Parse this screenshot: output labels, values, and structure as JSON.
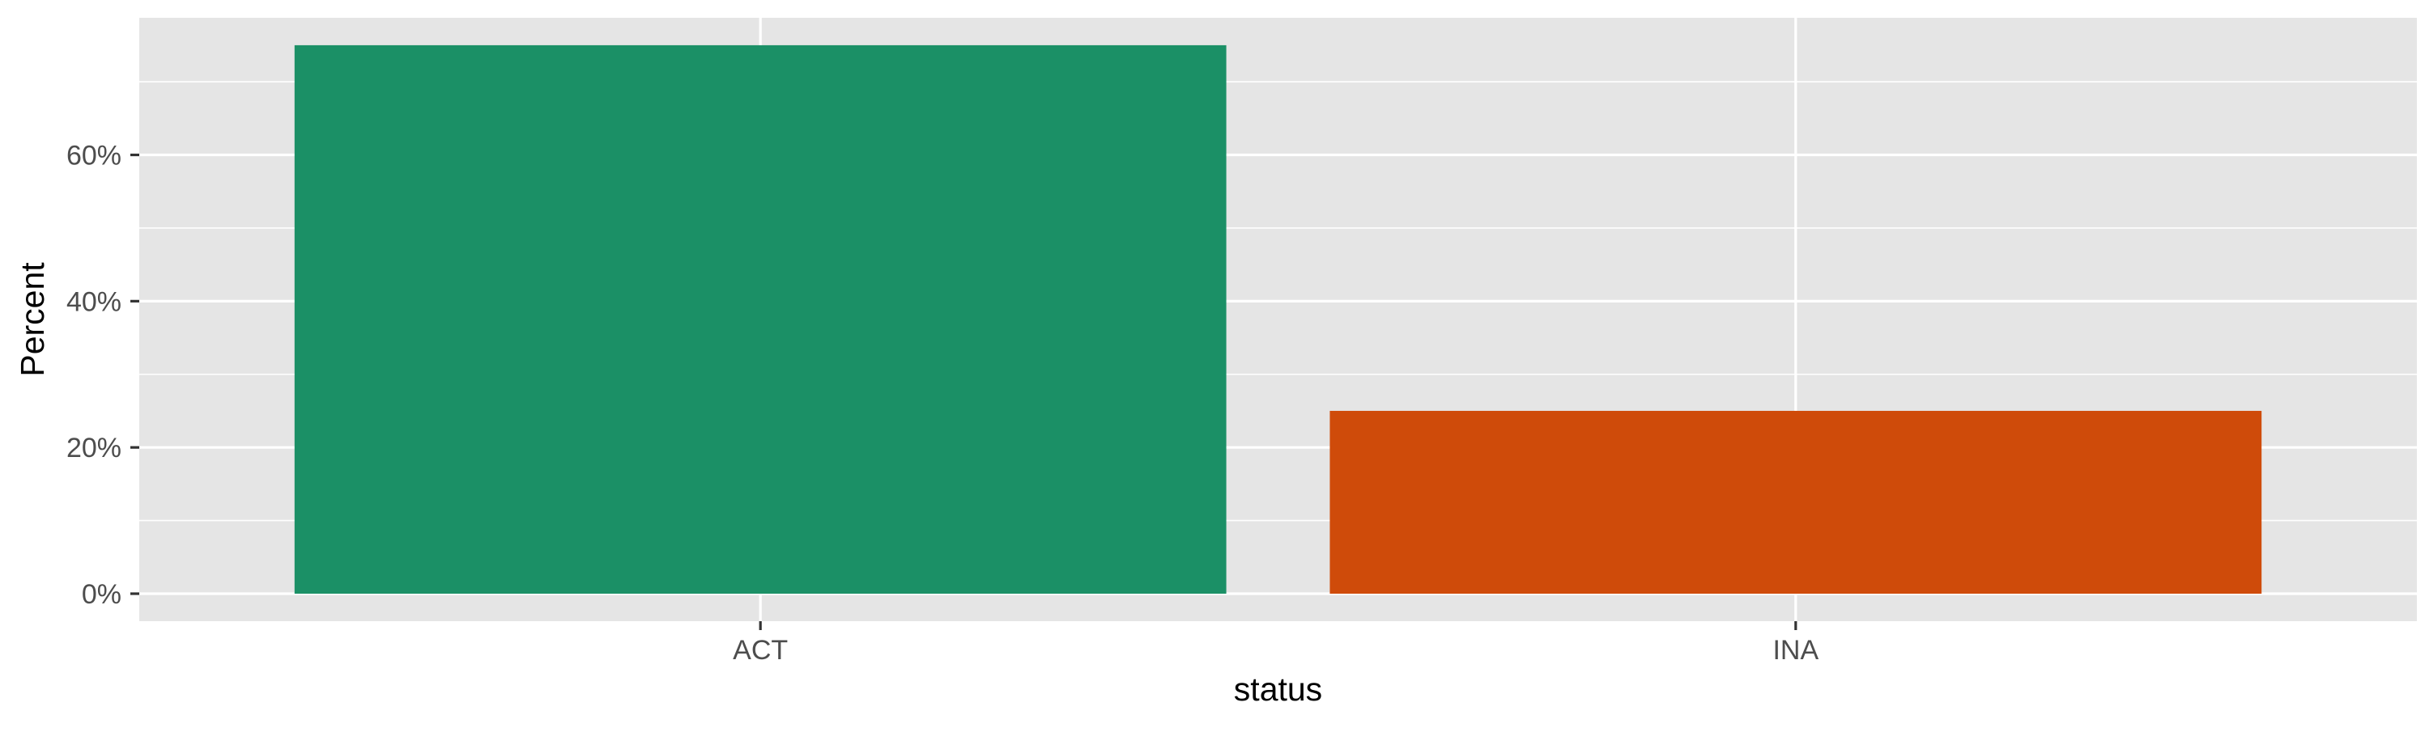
{
  "chart_data": {
    "type": "bar",
    "categories": [
      "ACT",
      "INA"
    ],
    "values": [
      0.75,
      0.25
    ],
    "colors": [
      "#1b9066",
      "#cf4b0a"
    ],
    "xlabel": "status",
    "ylabel": "Percent",
    "ylim": [
      0,
      0.7875
    ],
    "yticks": [
      {
        "value": 0,
        "label": "0%"
      },
      {
        "value": 0.2,
        "label": "20%"
      },
      {
        "value": 0.4,
        "label": "40%"
      },
      {
        "value": 0.6,
        "label": "60%"
      }
    ],
    "minor_yticks": [
      0.1,
      0.3,
      0.5,
      0.7
    ],
    "grid": true,
    "legend": "none",
    "panel_background": "#e5e5e5",
    "grid_color": "#ffffff"
  }
}
